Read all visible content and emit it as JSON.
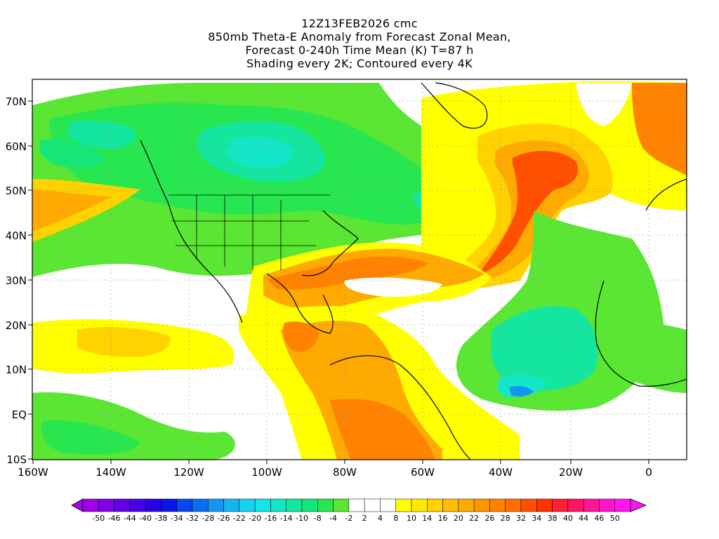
{
  "title": {
    "line1": "12Z13FEB2026 cmc",
    "line2": "850mb Theta-E Anomaly from Forecast Zonal Mean,",
    "line3": "Forecast 0-240h Time Mean (K) T=87 h",
    "line4": "Shading every 2K; Contoured every 4K"
  },
  "axes": {
    "lat_labels": [
      "70N",
      "60N",
      "50N",
      "40N",
      "30N",
      "20N",
      "10N",
      "EQ",
      "10S"
    ],
    "lon_labels": [
      "160W",
      "140W",
      "120W",
      "100W",
      "80W",
      "60W",
      "40W",
      "20W",
      "0"
    ]
  },
  "colorbar": {
    "labels": [
      "-50",
      "-46",
      "-44",
      "-40",
      "-38",
      "-34",
      "-32",
      "-28",
      "-26",
      "-22",
      "-20",
      "-16",
      "-14",
      "-10",
      "-8",
      "-4",
      "-2",
      "2",
      "4",
      "8",
      "10",
      "14",
      "16",
      "20",
      "22",
      "26",
      "28",
      "32",
      "34",
      "38",
      "40",
      "44",
      "46",
      "50"
    ],
    "colors": [
      "#a000e6",
      "#8200e6",
      "#6400e6",
      "#4600e6",
      "#2800e6",
      "#0a14e6",
      "#0a46f0",
      "#0a6ef0",
      "#1496f0",
      "#14b4f0",
      "#14d2f0",
      "#14e6e6",
      "#14e6c8",
      "#14e6a0",
      "#14e678",
      "#28e650",
      "#5ae632",
      "#ffffff",
      "#ffffff",
      "#ffffff",
      "#ffff00",
      "#ffeb00",
      "#ffd200",
      "#ffbe00",
      "#ffaa00",
      "#ff9600",
      "#ff8200",
      "#ff6e00",
      "#ff5000",
      "#ff3200",
      "#ff1e32",
      "#ff1464",
      "#ff1496",
      "#ff14c8",
      "#ff14f0"
    ]
  },
  "field_colors": {
    "green": "#5ae632",
    "green_mid": "#28e650",
    "green_deep": "#14e678",
    "teal": "#14e6a0",
    "cyan": "#14e6c8",
    "blue": "#1496f0",
    "yellow": "#ffff00",
    "gold": "#ffd200",
    "orange": "#ffaa00",
    "deep_orange": "#ff8200",
    "red_orange": "#ff5000"
  }
}
